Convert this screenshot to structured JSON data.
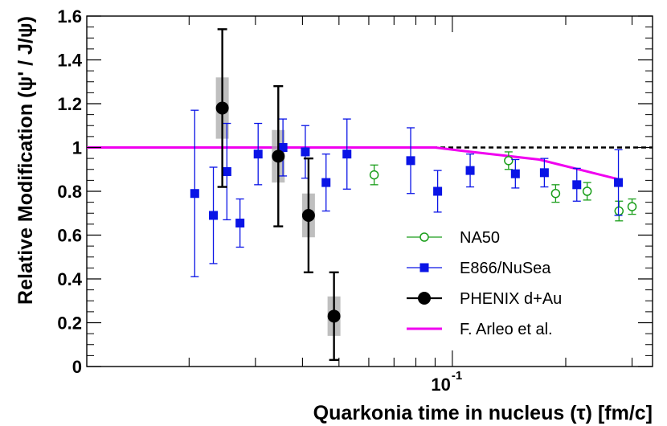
{
  "chart_data": {
    "type": "scatter",
    "xscale": "log",
    "xlim": [
      0.0107,
      0.34
    ],
    "ylim": [
      0,
      1.6
    ],
    "xlabel": "Quarkonia time in nucleus (τ) [fm/c]",
    "ylabel": "Relative Modification (ψ' / J/ψ)",
    "yticks": [
      "0",
      "0.2",
      "0.4",
      "0.6",
      "0.8",
      "1",
      "1.2",
      "1.4",
      "1.6"
    ],
    "xtick_label": "10",
    "xtick_exponent": "-1",
    "reference_line": 1.0,
    "legend_position": "bottom-right",
    "series": [
      {
        "name": "NA50",
        "color": "#1a9e1a",
        "marker": "open-circle",
        "points": [
          {
            "x": 0.062,
            "y": 0.875,
            "err": 0.045
          },
          {
            "x": 0.141,
            "y": 0.94,
            "err": 0.04
          },
          {
            "x": 0.188,
            "y": 0.79,
            "err": 0.04
          },
          {
            "x": 0.228,
            "y": 0.8,
            "err": 0.04
          },
          {
            "x": 0.277,
            "y": 0.71,
            "err": 0.045
          },
          {
            "x": 0.3,
            "y": 0.73,
            "err": 0.035
          }
        ]
      },
      {
        "name": "E866/NuSea",
        "color": "#0a14e6",
        "marker": "filled-square",
        "points": [
          {
            "x": 0.0207,
            "y": 0.79,
            "err": 0.38
          },
          {
            "x": 0.0232,
            "y": 0.69,
            "err": 0.22
          },
          {
            "x": 0.0252,
            "y": 0.89,
            "err": 0.22
          },
          {
            "x": 0.0273,
            "y": 0.655,
            "err": 0.11
          },
          {
            "x": 0.0305,
            "y": 0.97,
            "err": 0.14
          },
          {
            "x": 0.0355,
            "y": 1.0,
            "err": 0.13
          },
          {
            "x": 0.0407,
            "y": 0.98,
            "err": 0.12
          },
          {
            "x": 0.0462,
            "y": 0.84,
            "err": 0.13
          },
          {
            "x": 0.0525,
            "y": 0.97,
            "err": 0.16
          },
          {
            "x": 0.0775,
            "y": 0.94,
            "err": 0.15
          },
          {
            "x": 0.0914,
            "y": 0.8,
            "err": 0.095
          },
          {
            "x": 0.1115,
            "y": 0.895,
            "err": 0.075
          },
          {
            "x": 0.147,
            "y": 0.88,
            "err": 0.065
          },
          {
            "x": 0.1755,
            "y": 0.885,
            "err": 0.065
          },
          {
            "x": 0.214,
            "y": 0.83,
            "err": 0.075
          },
          {
            "x": 0.276,
            "y": 0.84,
            "err": 0.15
          }
        ]
      },
      {
        "name": "PHENIX d+Au",
        "color": "#000000",
        "marker": "filled-circle",
        "points": [
          {
            "x": 0.0245,
            "y": 1.18,
            "err": 0.36,
            "sys": 0.14
          },
          {
            "x": 0.0345,
            "y": 0.96,
            "err": 0.32,
            "sys": 0.12
          },
          {
            "x": 0.0415,
            "y": 0.69,
            "err": 0.26,
            "sys": 0.1
          },
          {
            "x": 0.0485,
            "y": 0.23,
            "err": 0.2,
            "sys": 0.09
          }
        ]
      },
      {
        "name": "F. Arleo et al.",
        "color": "#f000f0",
        "marker": "line",
        "line": [
          {
            "x": 0.0107,
            "y": 1.0
          },
          {
            "x": 0.09,
            "y": 1.0
          },
          {
            "x": 0.106,
            "y": 0.985
          },
          {
            "x": 0.17,
            "y": 0.945
          },
          {
            "x": 0.276,
            "y": 0.855
          }
        ]
      }
    ]
  }
}
